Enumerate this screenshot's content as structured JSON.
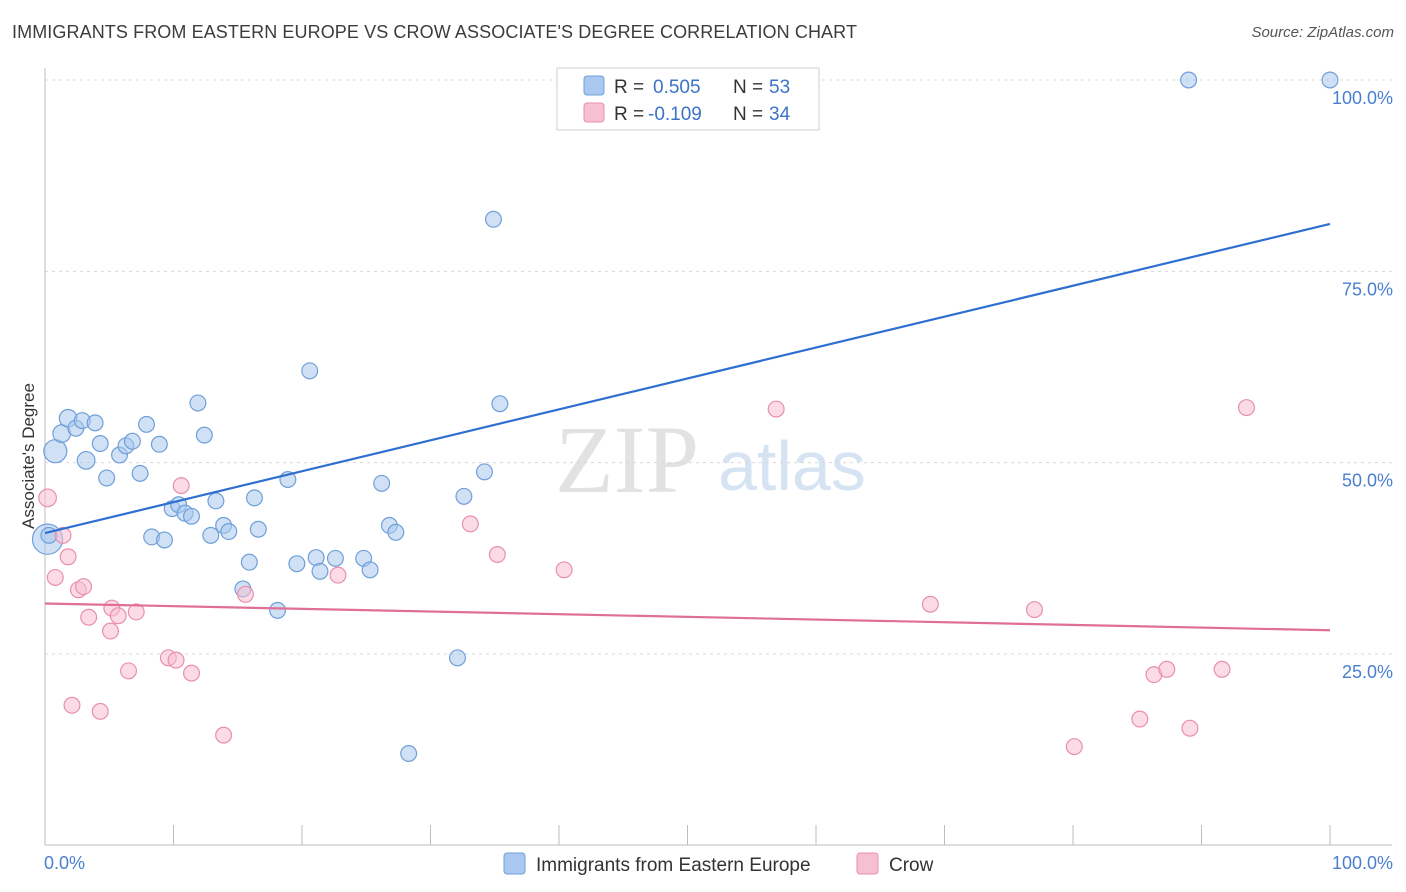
{
  "header": {
    "title": "IMMIGRANTS FROM EASTERN EUROPE VS CROW ASSOCIATE'S DEGREE CORRELATION CHART",
    "source": "Source: ZipAtlas.com"
  },
  "watermark": {
    "zip": "ZIP",
    "atlas": "atlas"
  },
  "legend": {
    "r_label": "R =",
    "n_label": "N =",
    "rows": [
      {
        "r": "0.505",
        "n": "53"
      },
      {
        "r": "-0.109",
        "n": "34"
      }
    ]
  },
  "colors": {
    "blue_fill": "#aac8ef",
    "blue_stroke": "#6f9fd8",
    "blue_line": "#2f6fd0",
    "pink_fill": "#f7bfd2",
    "pink_stroke": "#e98fad",
    "pink_line": "#e06f95",
    "tick_text": "#4a7fd0"
  },
  "chart_data": {
    "type": "scatter",
    "ylabel": "Associate's Degree",
    "xlabel": "",
    "xlim": [
      0,
      100
    ],
    "ylim": [
      0,
      102
    ],
    "x_tick_labels": [
      "0.0%",
      "100.0%"
    ],
    "y_ticks": [
      25,
      50,
      75,
      100
    ],
    "y_tick_labels": [
      "25.0%",
      "50.0%",
      "75.0%",
      "100.0%"
    ],
    "grid": "horizontal dashed",
    "legend_position": "top-center and bottom",
    "series": [
      {
        "name": "Immigrants from Eastern Europe",
        "color": "#aac8ef",
        "trend": [
          [
            0,
            40.8
          ],
          [
            100,
            81.2
          ]
        ],
        "points": [
          [
            0.2,
            40.0,
            28
          ],
          [
            0.8,
            51.5,
            20
          ],
          [
            1.3,
            53.8,
            14
          ],
          [
            1.8,
            55.8,
            14
          ],
          [
            2.4,
            54.5,
            12
          ],
          [
            2.9,
            55.5,
            12
          ],
          [
            3.2,
            50.3,
            14
          ],
          [
            3.9,
            55.2,
            12
          ],
          [
            4.3,
            52.5,
            12
          ],
          [
            4.8,
            48.0,
            12
          ],
          [
            5.8,
            51.0,
            12
          ],
          [
            6.3,
            52.2,
            12
          ],
          [
            6.8,
            52.8,
            12
          ],
          [
            7.4,
            48.6,
            12
          ],
          [
            7.9,
            55.0,
            12
          ],
          [
            8.3,
            40.3,
            12
          ],
          [
            8.9,
            52.4,
            12
          ],
          [
            9.3,
            39.9,
            12
          ],
          [
            9.9,
            44.0,
            12
          ],
          [
            10.4,
            44.5,
            12
          ],
          [
            10.9,
            43.4,
            12
          ],
          [
            11.4,
            43.0,
            12
          ],
          [
            11.9,
            57.8,
            12
          ],
          [
            12.4,
            53.6,
            12
          ],
          [
            12.9,
            40.5,
            12
          ],
          [
            13.3,
            45.0,
            12
          ],
          [
            13.9,
            41.8,
            12
          ],
          [
            14.3,
            41.0,
            12
          ],
          [
            15.9,
            37.0,
            12
          ],
          [
            16.3,
            45.4,
            12
          ],
          [
            16.6,
            41.3,
            12
          ],
          [
            15.4,
            33.5,
            12
          ],
          [
            18.1,
            30.7,
            12
          ],
          [
            18.9,
            47.8,
            12
          ],
          [
            19.6,
            36.8,
            12
          ],
          [
            20.6,
            62.0,
            12
          ],
          [
            21.1,
            37.6,
            12
          ],
          [
            21.4,
            35.8,
            12
          ],
          [
            22.6,
            37.5,
            12
          ],
          [
            24.8,
            37.5,
            12
          ],
          [
            25.3,
            36.0,
            12
          ],
          [
            26.2,
            47.3,
            12
          ],
          [
            26.8,
            41.8,
            12
          ],
          [
            27.3,
            40.9,
            12
          ],
          [
            28.3,
            12.0,
            12
          ],
          [
            32.1,
            24.5,
            12
          ],
          [
            32.6,
            45.6,
            12
          ],
          [
            34.2,
            48.8,
            12
          ],
          [
            34.9,
            81.8,
            12
          ],
          [
            35.4,
            57.7,
            12
          ],
          [
            89.0,
            100.0,
            12
          ],
          [
            100.0,
            100.0,
            12
          ],
          [
            0.3,
            40.5,
            12
          ]
        ]
      },
      {
        "name": "Crow",
        "color": "#f7bfd2",
        "trend": [
          [
            0,
            31.6
          ],
          [
            100,
            28.1
          ]
        ],
        "points": [
          [
            0.2,
            45.4,
            14
          ],
          [
            0.8,
            35.0,
            12
          ],
          [
            1.4,
            40.5,
            12
          ],
          [
            1.8,
            37.7,
            12
          ],
          [
            2.1,
            18.3,
            12
          ],
          [
            2.6,
            33.4,
            12
          ],
          [
            3.0,
            33.8,
            12
          ],
          [
            3.4,
            29.8,
            12
          ],
          [
            4.3,
            17.5,
            12
          ],
          [
            5.1,
            28.0,
            12
          ],
          [
            5.2,
            31.0,
            12
          ],
          [
            5.7,
            30.0,
            12
          ],
          [
            6.5,
            22.8,
            12
          ],
          [
            7.1,
            30.5,
            12
          ],
          [
            9.6,
            24.5,
            12
          ],
          [
            10.2,
            24.2,
            12
          ],
          [
            10.6,
            47.0,
            12
          ],
          [
            11.4,
            22.5,
            12
          ],
          [
            13.9,
            14.4,
            12
          ],
          [
            15.6,
            32.8,
            12
          ],
          [
            22.8,
            35.3,
            12
          ],
          [
            33.1,
            42.0,
            12
          ],
          [
            35.2,
            38.0,
            12
          ],
          [
            40.4,
            36.0,
            12
          ],
          [
            56.9,
            57.0,
            12
          ],
          [
            68.9,
            31.5,
            12
          ],
          [
            77.0,
            30.8,
            12
          ],
          [
            80.1,
            12.9,
            12
          ],
          [
            85.2,
            16.5,
            12
          ],
          [
            86.3,
            22.3,
            12
          ],
          [
            87.3,
            23.0,
            12
          ],
          [
            89.1,
            15.3,
            12
          ],
          [
            91.6,
            23.0,
            12
          ],
          [
            93.5,
            57.2,
            12
          ]
        ]
      }
    ]
  }
}
